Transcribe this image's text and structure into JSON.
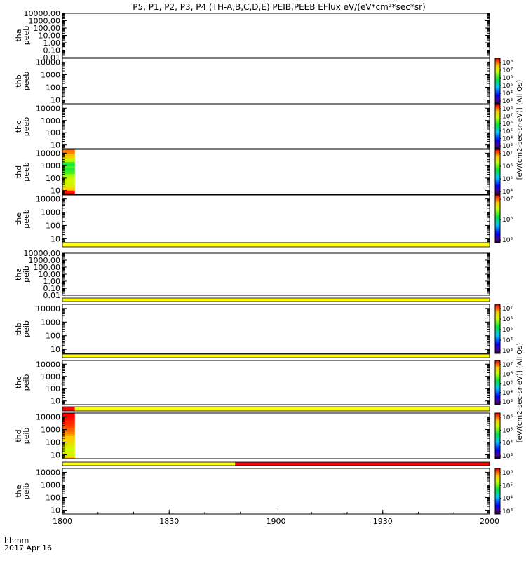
{
  "title": "P5, P1, P2, P3, P4 (TH-A,B,C,D,E) PEIB,PEEB EFlux eV/(eV*cm²*sec*sr)",
  "time_label": "hhmm",
  "date_label": "2017 Apr 16",
  "x_ticks": [
    "1800",
    "1830",
    "1900",
    "1930",
    "2000"
  ],
  "x_range_minutes": [
    0,
    120
  ],
  "colorbar_labels": {
    "peeb": "[eV/(cm2-sec-sr-eV)] (All Qs)",
    "peib": "[eV/(cm2-sec-sr-eV)] (All Qs)"
  },
  "colors": {
    "flag_yellow": "#ffff00",
    "flag_red": "#ff0000"
  },
  "chart_data": {
    "type": "heatmap",
    "panels": [
      {
        "probe": "tha",
        "species": "peeb",
        "y_labels": [
          "tha",
          "peeb"
        ],
        "yticks": [
          "10000.00",
          "1000.00",
          "100.00",
          "10.00",
          "1.00",
          "0.10",
          "0.01"
        ],
        "yscale": "log",
        "ylim": [
          0.01,
          10000
        ],
        "has_colorbar": false,
        "data_block": null,
        "flag_bar": null
      },
      {
        "probe": "thb",
        "species": "peeb",
        "y_labels": [
          "thb",
          "peeb"
        ],
        "yticks": [
          "10000",
          "1000",
          "100",
          "10"
        ],
        "yscale": "log",
        "ylim": [
          5,
          20000
        ],
        "has_colorbar": true,
        "cbar_ticks": [
          "10⁸",
          "10⁷",
          "10⁶",
          "10⁵",
          "10⁴",
          "10³"
        ],
        "data_block": null,
        "flag_bar": null
      },
      {
        "probe": "thc",
        "species": "peeb",
        "y_labels": [
          "thc",
          "peeb"
        ],
        "yticks": [
          "10000",
          "1000",
          "100",
          "10"
        ],
        "yscale": "log",
        "ylim": [
          5,
          20000
        ],
        "has_colorbar": true,
        "cbar_ticks": [
          "10⁸",
          "10⁷",
          "10⁶",
          "10⁵",
          "10⁴",
          "10³"
        ],
        "data_block": null,
        "flag_bar": null
      },
      {
        "probe": "thd",
        "species": "peeb",
        "y_labels": [
          "thd",
          "peeb"
        ],
        "yticks": [
          "10000",
          "1000",
          "100",
          "10"
        ],
        "yscale": "log",
        "ylim": [
          5,
          20000
        ],
        "has_colorbar": true,
        "cbar_ticks": [
          "10⁷",
          "10⁶",
          "10⁵",
          "10⁴"
        ],
        "data_block": {
          "t_start": 0,
          "t_end": 3.5,
          "style": "electron"
        },
        "flag_bar": null
      },
      {
        "probe": "the",
        "species": "peeb",
        "y_labels": [
          "the",
          "peeb"
        ],
        "yticks": [
          "10000",
          "1000",
          "100",
          "10"
        ],
        "yscale": "log",
        "ylim": [
          5,
          20000
        ],
        "has_colorbar": true,
        "cbar_ticks": [
          "10⁷",
          "10⁶",
          "10⁵"
        ],
        "data_block": null,
        "flag_bar": [
          {
            "t_start": 0,
            "t_end": 120,
            "color": "yellow"
          }
        ]
      },
      {
        "probe": "tha",
        "species": "peib",
        "y_labels": [
          "tha",
          "peib"
        ],
        "yticks": [
          "10000.00",
          "1000.00",
          "100.00",
          "10.00",
          "1.00",
          "0.10",
          "0.01"
        ],
        "yscale": "log",
        "ylim": [
          0.01,
          10000
        ],
        "has_colorbar": false,
        "data_block": null,
        "flag_bar": [
          {
            "t_start": 0,
            "t_end": 120,
            "color": "yellow"
          }
        ]
      },
      {
        "probe": "thb",
        "species": "peib",
        "y_labels": [
          "thb",
          "peib"
        ],
        "yticks": [
          "10000",
          "1000",
          "100",
          "10"
        ],
        "yscale": "log",
        "ylim": [
          5,
          20000
        ],
        "has_colorbar": true,
        "cbar_ticks": [
          "10⁷",
          "10⁶",
          "10⁵",
          "10⁴",
          "10³"
        ],
        "data_block": null,
        "flag_bar": [
          {
            "t_start": 0,
            "t_end": 120,
            "color": "yellow"
          }
        ]
      },
      {
        "probe": "thc",
        "species": "peib",
        "y_labels": [
          "thc",
          "peib"
        ],
        "yticks": [
          "10000",
          "1000",
          "100",
          "10"
        ],
        "yscale": "log",
        "ylim": [
          5,
          20000
        ],
        "has_colorbar": true,
        "cbar_ticks": [
          "10⁷",
          "10⁶",
          "10⁵",
          "10⁴",
          "10³"
        ],
        "data_block": null,
        "flag_bar": [
          {
            "t_start": 0,
            "t_end": 3.5,
            "color": "red"
          },
          {
            "t_start": 3.5,
            "t_end": 120,
            "color": "yellow"
          }
        ]
      },
      {
        "probe": "thd",
        "species": "peib",
        "y_labels": [
          "thd",
          "peib"
        ],
        "yticks": [
          "10000",
          "1000",
          "100",
          "10"
        ],
        "yscale": "log",
        "ylim": [
          5,
          20000
        ],
        "has_colorbar": true,
        "cbar_ticks": [
          "10⁶",
          "10⁵",
          "10⁴",
          "10³"
        ],
        "data_block": {
          "t_start": 0,
          "t_end": 3.5,
          "style": "ion"
        },
        "flag_bar": [
          {
            "t_start": 0,
            "t_end": 48.5,
            "color": "yellow"
          },
          {
            "t_start": 48.5,
            "t_end": 120,
            "color": "red"
          }
        ]
      },
      {
        "probe": "the",
        "species": "peib",
        "y_labels": [
          "the",
          "peib"
        ],
        "yticks": [
          "10000",
          "1000",
          "100",
          "10"
        ],
        "yscale": "log",
        "ylim": [
          5,
          20000
        ],
        "has_colorbar": true,
        "cbar_ticks": [
          "10⁶",
          "10⁵",
          "10⁴",
          "10³"
        ],
        "data_block": null,
        "flag_bar": null
      }
    ]
  }
}
